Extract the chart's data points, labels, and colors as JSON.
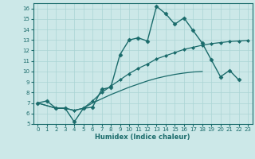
{
  "xlabel": "Humidex (Indice chaleur)",
  "xlim": [
    -0.5,
    23.5
  ],
  "ylim": [
    5,
    16.5
  ],
  "xticks": [
    0,
    1,
    2,
    3,
    4,
    5,
    6,
    7,
    8,
    9,
    10,
    11,
    12,
    13,
    14,
    15,
    16,
    17,
    18,
    19,
    20,
    21,
    22,
    23
  ],
  "yticks": [
    5,
    6,
    7,
    8,
    9,
    10,
    11,
    12,
    13,
    14,
    15,
    16
  ],
  "bg_color": "#cce8e8",
  "line_color": "#1a6b6b",
  "grid_color": "#aad4d4",
  "series": [
    {
      "x": [
        0,
        1,
        2,
        3,
        4,
        5,
        6,
        7,
        8,
        9,
        10,
        11,
        12,
        13,
        14,
        15,
        16,
        17,
        18,
        19,
        20,
        21,
        22
      ],
      "y": [
        7.0,
        7.2,
        6.5,
        6.5,
        5.2,
        6.5,
        6.6,
        8.3,
        8.5,
        11.6,
        13.0,
        13.2,
        12.9,
        16.2,
        15.5,
        14.5,
        15.1,
        13.9,
        12.7,
        11.1,
        9.5,
        10.1,
        9.2
      ],
      "marker": "D",
      "markersize": 2.5,
      "linestyle": "-",
      "linewidth": 1.0
    },
    {
      "x": [
        0,
        2,
        3,
        4,
        5,
        6,
        7,
        8,
        9,
        10,
        11,
        12,
        13,
        14,
        15,
        16,
        17,
        18,
        19,
        20,
        21,
        22,
        23
      ],
      "y": [
        7.0,
        6.5,
        6.5,
        6.3,
        6.5,
        7.2,
        8.0,
        8.6,
        9.2,
        9.8,
        10.3,
        10.7,
        11.2,
        11.5,
        11.8,
        12.1,
        12.3,
        12.5,
        12.65,
        12.75,
        12.85,
        12.9,
        12.95
      ],
      "marker": "D",
      "markersize": 2.0,
      "linestyle": "-",
      "linewidth": 0.9
    },
    {
      "x": [
        0,
        2,
        3,
        4,
        5,
        6,
        7,
        8,
        9,
        10,
        11,
        12,
        13,
        14,
        15,
        16,
        17,
        18,
        19,
        20,
        21,
        22,
        23
      ],
      "y": [
        7.0,
        6.5,
        6.5,
        6.3,
        6.5,
        7.0,
        7.4,
        7.8,
        8.15,
        8.5,
        8.8,
        9.1,
        9.35,
        9.55,
        9.72,
        9.85,
        9.95,
        10.0,
        null,
        null,
        null,
        null,
        null
      ],
      "marker": null,
      "markersize": 0,
      "linestyle": "-",
      "linewidth": 0.9
    }
  ]
}
